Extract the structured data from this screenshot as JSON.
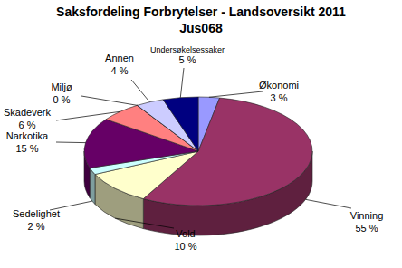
{
  "chart_data": {
    "type": "pie",
    "title": "Saksfordeling Forbrytelser - Landsoversikt 2011",
    "subtitle": "Jus068",
    "categories": [
      "Økonomi",
      "Vinning",
      "Vold",
      "Sedelighet",
      "Narkotika",
      "Skadeverk",
      "Miljø",
      "Annen",
      "Undersøkelsessaker"
    ],
    "values": [
      3,
      55,
      10,
      2,
      15,
      6,
      0,
      4,
      5
    ],
    "value_labels": [
      "3 %",
      "55 %",
      "10 %",
      "2 %",
      "15 %",
      "6 %",
      "0 %",
      "4 %",
      "5 %"
    ],
    "colors": [
      "#9999ff",
      "#993366",
      "#ffffcc",
      "#ccffff",
      "#660066",
      "#ff8080",
      "#0066cc",
      "#ccccff",
      "#000080"
    ],
    "data_labels": true
  }
}
